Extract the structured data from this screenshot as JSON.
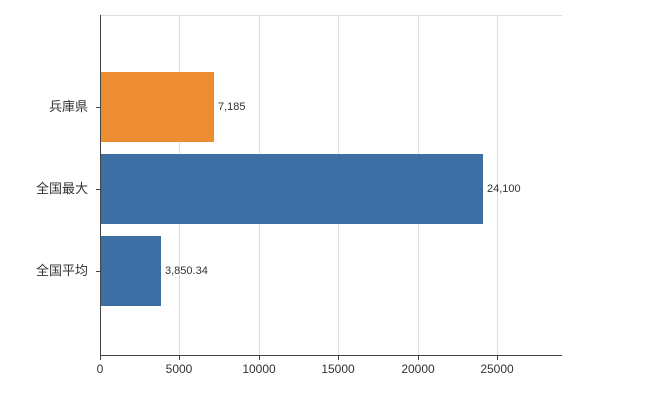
{
  "chart_data": {
    "type": "bar",
    "orientation": "horizontal",
    "title": "",
    "xlabel": "",
    "ylabel": "",
    "categories": [
      "兵庫県",
      "全国最大",
      "全国平均"
    ],
    "values": [
      7185,
      24100,
      3850.34
    ],
    "value_labels": [
      "7,185",
      "24,100",
      "3,850.34"
    ],
    "bar_colors": [
      "#ED8D31",
      "#3D6FA5",
      "#3D6FA5"
    ],
    "x_ticks": [
      0,
      5000,
      10000,
      15000,
      20000,
      25000
    ],
    "x_tick_labels": [
      "0",
      "5000",
      "10000",
      "15000",
      "20000",
      "25000"
    ],
    "xlim": [
      0,
      29100
    ],
    "grid": "vertical",
    "legend": "none",
    "colors": {
      "grid": "#dddddd",
      "axis": "#444444",
      "text": "#333333",
      "background": "#ffffff"
    }
  }
}
